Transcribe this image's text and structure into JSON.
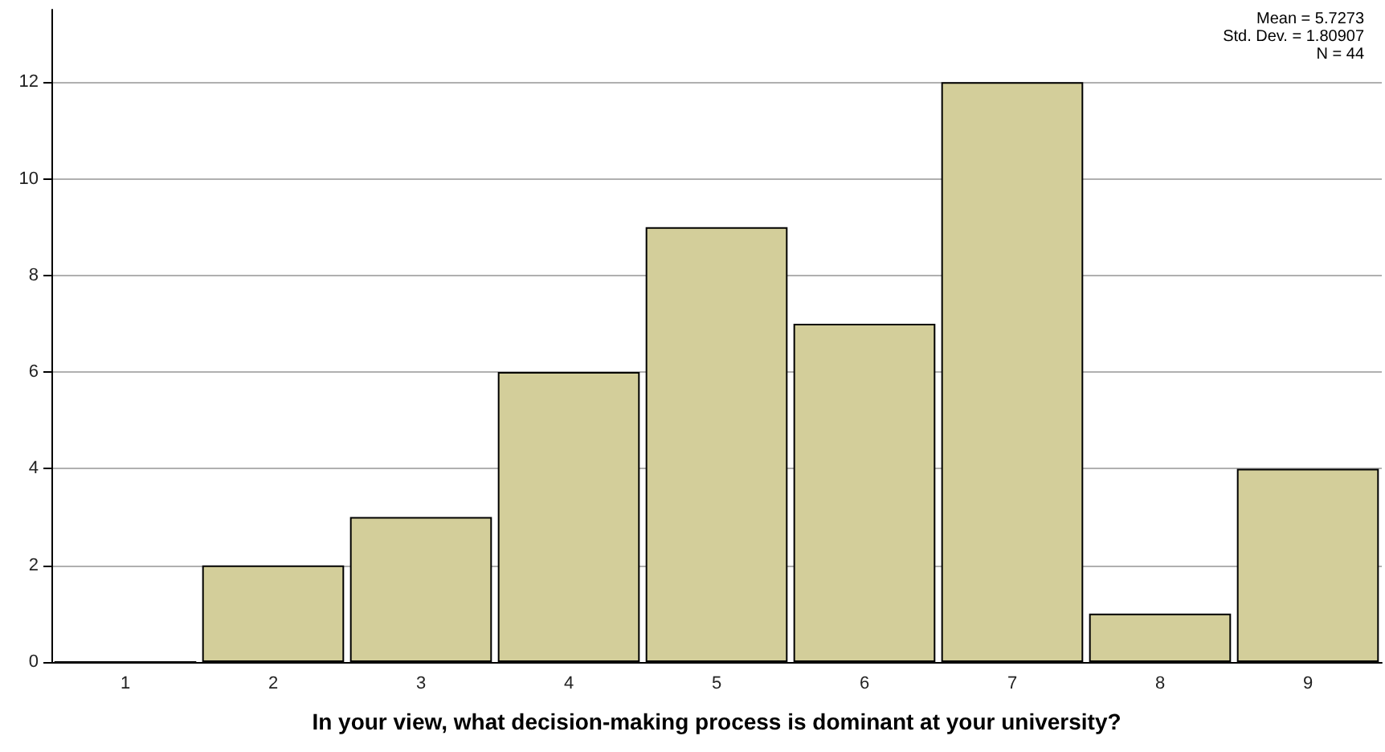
{
  "chart_data": {
    "type": "bar",
    "xlabel": "In your view, what decision-making process is dominant at your university?",
    "categories": [
      "1",
      "2",
      "3",
      "4",
      "5",
      "6",
      "7",
      "8",
      "9"
    ],
    "values": [
      0,
      2,
      3,
      6,
      9,
      7,
      12,
      1,
      4
    ],
    "color": "#d3ce9a",
    "ylim": [
      0,
      13.5
    ],
    "yticks": [
      0,
      2,
      4,
      6,
      8,
      10,
      12
    ],
    "grid": "y",
    "annotations": [
      "Mean = 5.7273",
      "Std. Dev. = 1.80907",
      "N = 44"
    ]
  }
}
